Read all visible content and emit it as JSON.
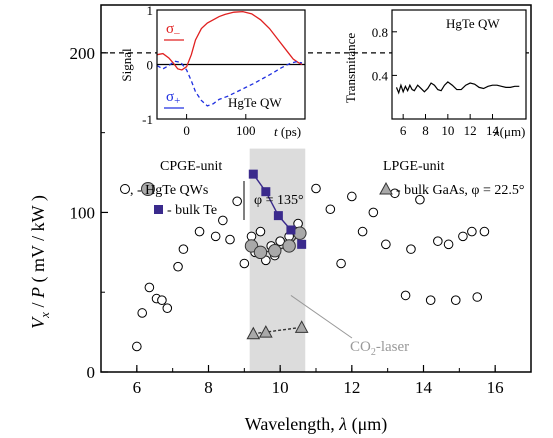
{
  "chart_data": [
    {
      "type": "scatter",
      "panel": "main",
      "xlabel_parts": [
        "Wavelength, ",
        "λ",
        "  (μm)"
      ],
      "ylabel_parts": [
        "V",
        "x",
        " / ",
        "P",
        "   ( mV / kW )"
      ],
      "xlim": [
        5,
        17
      ],
      "ylim": [
        0,
        230
      ],
      "x_ticks": [
        6,
        8,
        10,
        12,
        14,
        16
      ],
      "y_ticks": [
        0,
        100,
        200
      ],
      "dashed_hline": 200,
      "shaded_region": [
        9.15,
        10.7
      ],
      "legend": {
        "cpge_title": "CPGE-unit",
        "hgte_label": ", - HgTe QWs",
        "te_label": "- bulk Te",
        "phi_cpge": "φ = 135°",
        "lpge_title": "LPGE-unit",
        "gaas_label": "- bulk GaAs, φ = 22.5°"
      },
      "annotation": {
        "text_main": "CO",
        "text_sub": "2",
        "text_tail": "-laser",
        "x": 10.3,
        "y": 48
      },
      "series": [
        {
          "marker": "open-circle",
          "x": [
            6.0,
            6.15,
            6.35,
            6.55,
            6.7,
            6.85,
            7.15,
            7.3,
            7.75,
            8.2,
            8.4,
            8.6,
            8.8,
            9.0,
            9.2,
            9.3,
            9.45,
            9.6,
            9.75,
            9.85,
            10.0,
            10.25,
            10.5,
            11.0,
            11.4,
            11.7,
            12.0,
            12.3,
            12.6,
            12.95,
            13.2,
            13.5,
            13.65,
            13.9,
            14.2,
            14.4,
            14.7,
            14.9,
            15.1,
            15.35,
            15.5,
            15.7
          ],
          "y": [
            16,
            37,
            53,
            46,
            45,
            40,
            66,
            77,
            88,
            85,
            95,
            83,
            107,
            68,
            85,
            75,
            88,
            70,
            79,
            73,
            82,
            85,
            93,
            115,
            102,
            68,
            110,
            88,
            100,
            80,
            112,
            48,
            77,
            108,
            45,
            82,
            80,
            45,
            85,
            88,
            47,
            88
          ]
        },
        {
          "marker": "filled-circle",
          "connected": true,
          "x": [
            9.2,
            9.45,
            9.85,
            10.25,
            10.55
          ],
          "y": [
            79,
            75,
            76,
            79,
            87
          ]
        },
        {
          "marker": "filled-square",
          "connected": true,
          "x": [
            9.25,
            9.6,
            9.95,
            10.3,
            10.6
          ],
          "y": [
            124,
            113,
            98,
            89,
            80
          ]
        },
        {
          "marker": "filled-triangle",
          "connected": true,
          "dashed": true,
          "x": [
            9.25,
            9.6,
            10.6
          ],
          "y": [
            24,
            25,
            28
          ]
        }
      ]
    },
    {
      "type": "line",
      "panel": "inset-left",
      "ylabel": "Signal",
      "xlabel_parts": [
        "t",
        " (ps)"
      ],
      "xlim": [
        -50,
        200
      ],
      "ylim": [
        -1,
        1
      ],
      "x_ticks": [
        0,
        100
      ],
      "y_ticks": [
        -1,
        0,
        1
      ],
      "label": "HgTe QW",
      "legend": {
        "sigma_minus_base": "σ",
        "sigma_minus_sub": "–",
        "sigma_plus_base": "σ",
        "sigma_plus_sub": "+"
      },
      "series": [
        {
          "color": "#e02020",
          "x": [
            -50,
            -40,
            -30,
            -22,
            -15,
            -8,
            0,
            8,
            15,
            25,
            35,
            45,
            55,
            65,
            80,
            95,
            110,
            125,
            140,
            155,
            170,
            180,
            188,
            195
          ],
          "y": [
            0.18,
            0.2,
            0.12,
            0.02,
            -0.08,
            -0.1,
            -0.04,
            0.18,
            0.45,
            0.66,
            0.76,
            0.82,
            0.88,
            0.92,
            0.96,
            0.97,
            0.93,
            0.82,
            0.66,
            0.45,
            0.24,
            0.1,
            0.04,
            0.0
          ]
        },
        {
          "color": "#2030e0",
          "dashed": true,
          "x": [
            -50,
            -40,
            -30,
            -20,
            -10,
            0,
            8,
            15,
            25,
            35,
            45,
            55,
            70,
            85,
            100,
            115,
            130,
            145,
            160,
            175,
            185,
            195
          ],
          "y": [
            -0.02,
            -0.08,
            -0.02,
            0.06,
            0.04,
            -0.1,
            -0.3,
            -0.5,
            -0.66,
            -0.76,
            -0.72,
            -0.64,
            -0.58,
            -0.5,
            -0.42,
            -0.34,
            -0.25,
            -0.16,
            -0.06,
            0.02,
            0.05,
            0.03
          ]
        }
      ]
    },
    {
      "type": "line",
      "panel": "inset-right",
      "ylabel": "Transmitance",
      "xlabel_parts": [
        "λ",
        "(μm)"
      ],
      "xlim": [
        5,
        17
      ],
      "ylim": [
        0,
        1
      ],
      "x_ticks": [
        6,
        8,
        10,
        12,
        14
      ],
      "y_ticks": [
        0.4,
        0.8
      ],
      "label": "HgTe QW",
      "series": [
        {
          "color": "#000000",
          "x": [
            5.4,
            5.6,
            5.8,
            6.0,
            6.2,
            6.4,
            6.6,
            6.8,
            7.0,
            7.3,
            7.6,
            7.9,
            8.2,
            8.5,
            8.8,
            9.1,
            9.4,
            9.7,
            10.0,
            10.4,
            10.8,
            11.2,
            11.6,
            12.0,
            12.4,
            12.8,
            13.2,
            13.6,
            14.0,
            14.4,
            14.8,
            15.2,
            15.6,
            16.0,
            16.4
          ],
          "y": [
            0.29,
            0.24,
            0.31,
            0.25,
            0.3,
            0.26,
            0.31,
            0.27,
            0.26,
            0.31,
            0.28,
            0.25,
            0.28,
            0.33,
            0.31,
            0.27,
            0.26,
            0.31,
            0.34,
            0.31,
            0.27,
            0.27,
            0.31,
            0.33,
            0.32,
            0.29,
            0.28,
            0.3,
            0.31,
            0.31,
            0.3,
            0.29,
            0.29,
            0.3,
            0.3
          ]
        }
      ]
    }
  ]
}
